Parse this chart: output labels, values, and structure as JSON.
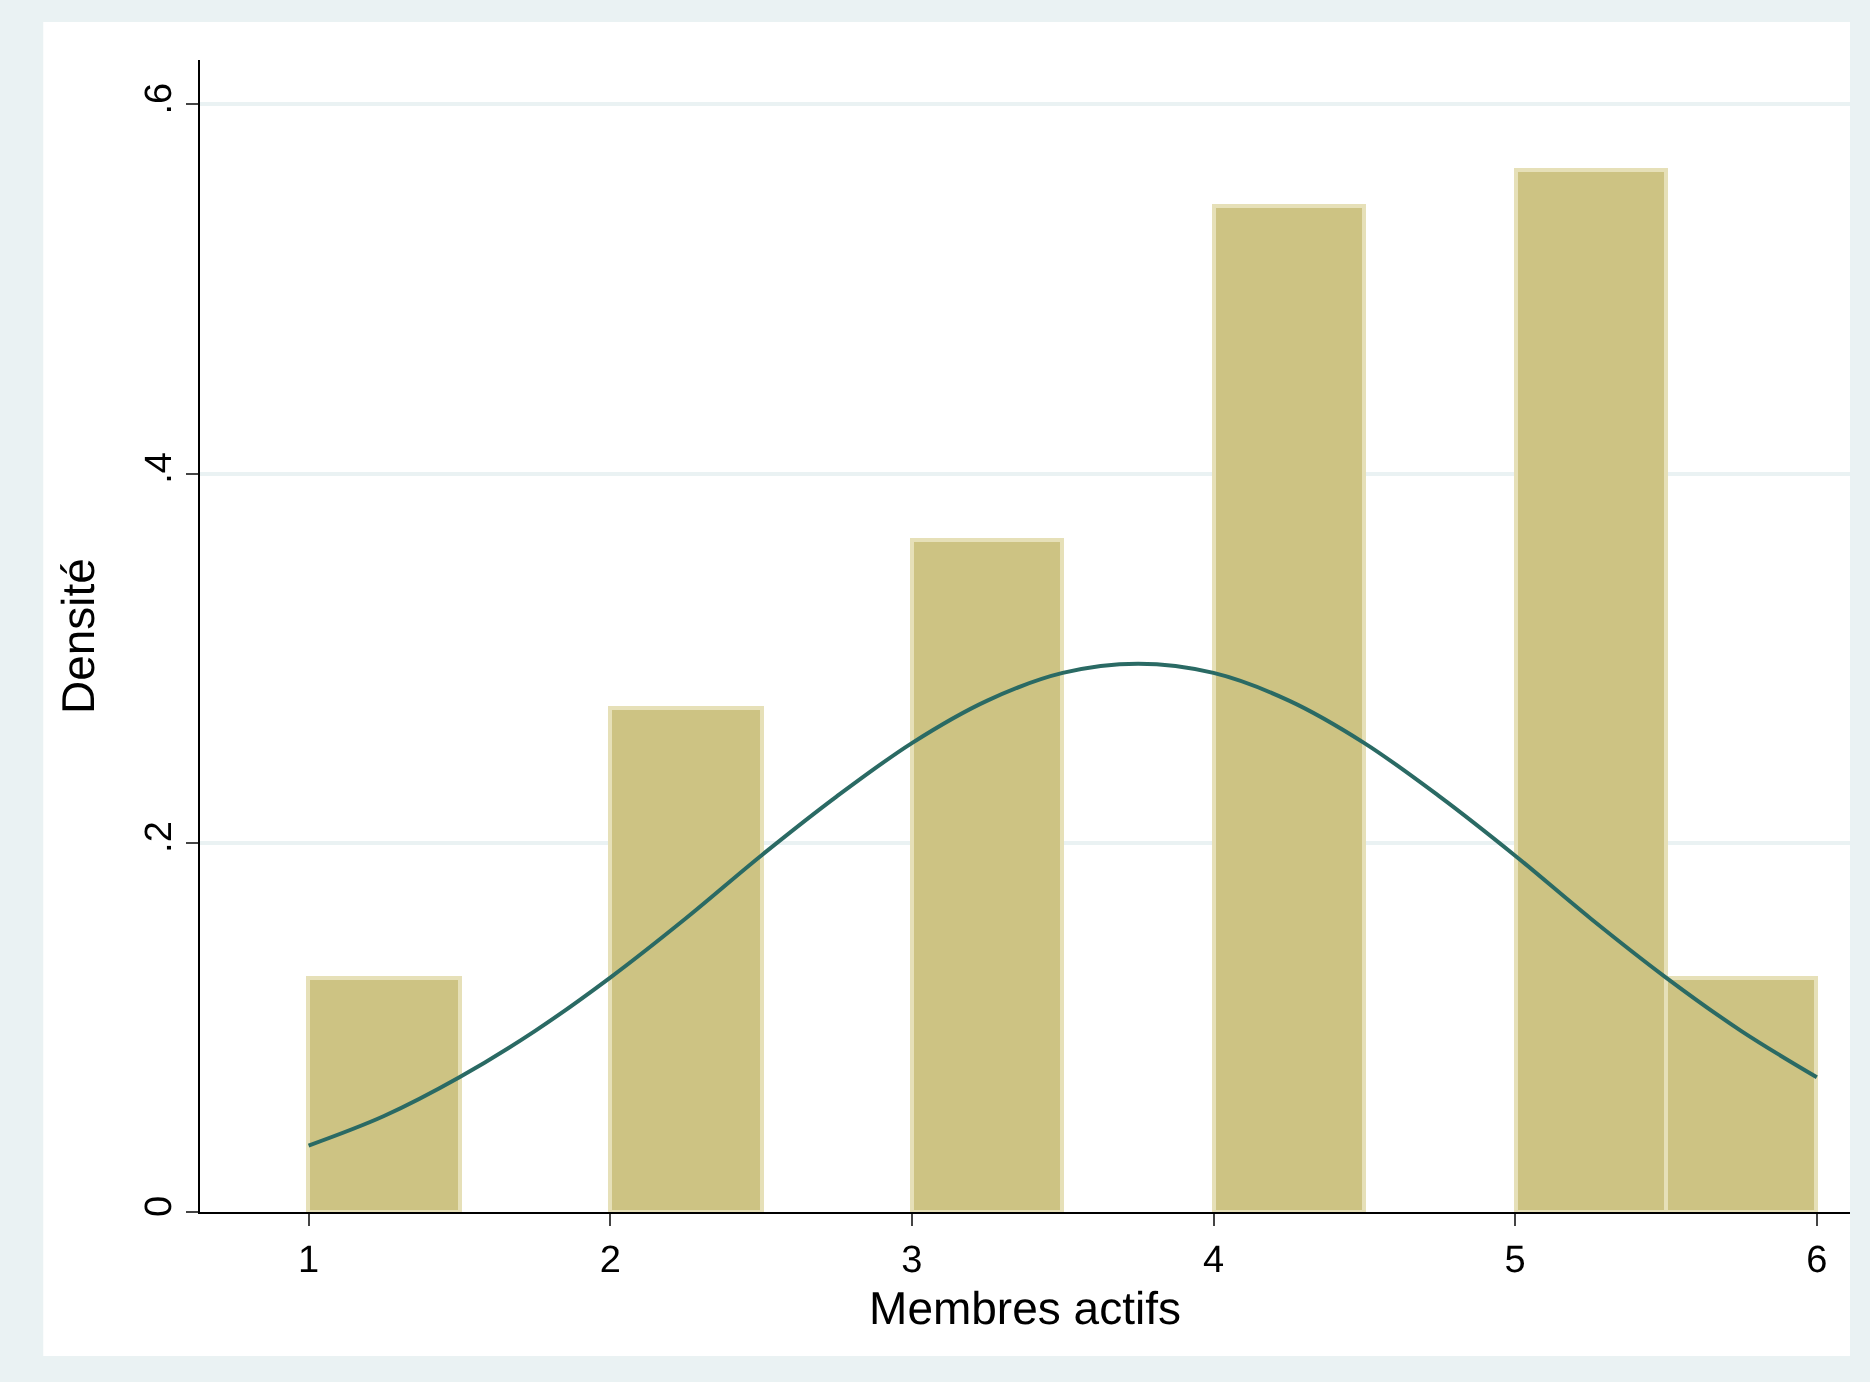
{
  "chart_data": {
    "type": "histogram",
    "xlabel": "Membres actifs",
    "ylabel": "Densité",
    "bins": [
      1,
      1.5,
      2,
      2.5,
      3,
      3.5,
      4,
      4.5,
      5,
      5.5,
      6
    ],
    "values": [
      0.127,
      0,
      0.273,
      0,
      0.364,
      0,
      0.545,
      0,
      0.564,
      0.127
    ],
    "color": "#cdc383",
    "series": [
      {
        "type": "line",
        "color": "#2a6a64",
        "x": [
          1,
          1.25,
          1.5,
          1.75,
          2,
          2.25,
          2.5,
          2.75,
          3,
          3.25,
          3.5,
          3.75,
          4,
          4.25,
          4.5,
          4.75,
          5,
          5.25,
          5.5,
          5.75,
          6
        ],
        "values": [
          0.036,
          0.052,
          0.073,
          0.098,
          0.127,
          0.159,
          0.193,
          0.225,
          0.254,
          0.277,
          0.292,
          0.297,
          0.292,
          0.277,
          0.254,
          0.225,
          0.193,
          0.159,
          0.127,
          0.098,
          0.073
        ]
      }
    ],
    "xlim": [
      0.64,
      6.11
    ],
    "xticks": [
      1,
      2,
      3,
      4,
      5,
      6
    ],
    "ylim": [
      0,
      0.624
    ],
    "yticks": [
      {
        "value": 0,
        "label": "0"
      },
      {
        "value": 0.2,
        "label": ".2"
      },
      {
        "value": 0.4,
        "label": ".4"
      },
      {
        "value": 0.6,
        "label": ".6"
      }
    ],
    "grid": "y"
  }
}
